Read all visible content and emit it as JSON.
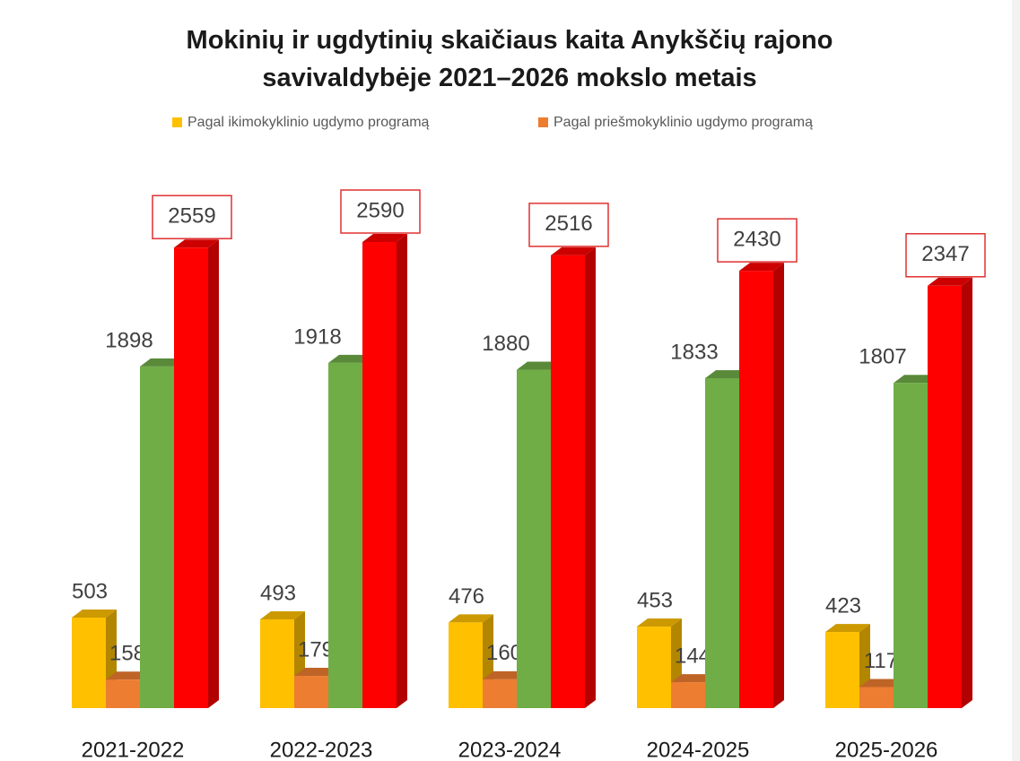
{
  "chart_data": {
    "type": "bar3d",
    "title": "Mokinių ir ugdytinių skaičiaus kaita Anykščių rajono savivaldybėje 2021–2026 mokslo metais",
    "categories": [
      "2021-2022",
      "2022-2023",
      "2023-2024",
      "2024-2025",
      "2025-2026"
    ],
    "series": [
      {
        "name": "Pagal ikimokyklinio ugdymo programą",
        "color": "#ffc000",
        "values": [
          503,
          493,
          476,
          453,
          423
        ]
      },
      {
        "name": "Pagal priešmokyklinio ugdymo programą",
        "color": "#ed7d31",
        "values": [
          158,
          179,
          160,
          144,
          117
        ]
      },
      {
        "color": "#70ad47",
        "values": [
          1898,
          1918,
          1880,
          1833,
          1807
        ]
      },
      {
        "color": "#ff0000",
        "values": [
          2559,
          2590,
          2516,
          2430,
          2347
        ]
      }
    ]
  }
}
